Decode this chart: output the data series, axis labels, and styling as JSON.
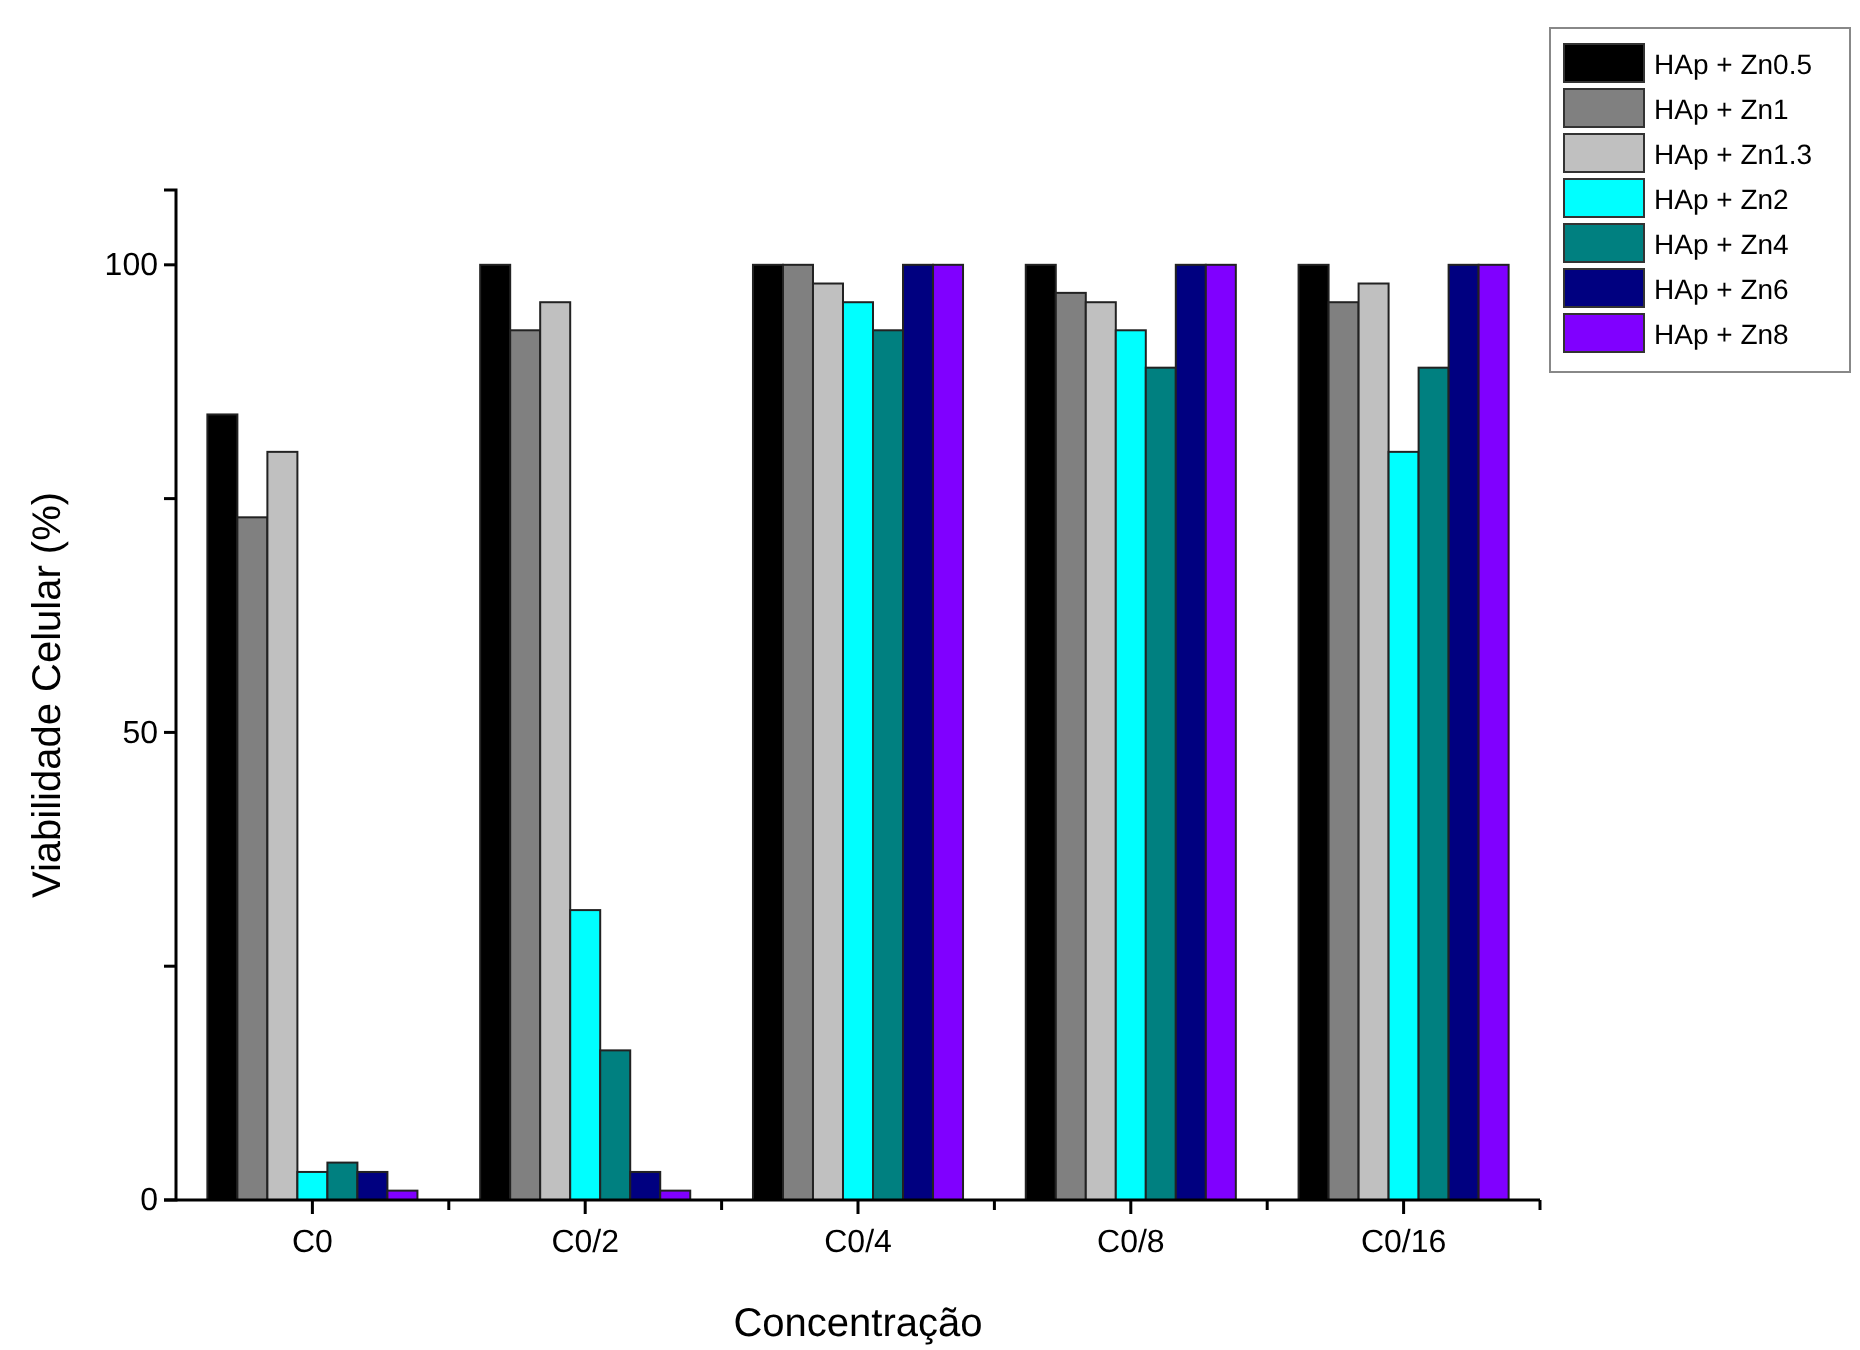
{
  "chart_data": {
    "type": "bar",
    "xlabel": "Concentração",
    "ylabel": "Viabilidade Celular (%)",
    "categories": [
      "C0",
      "C0/2",
      "C0/4",
      "C0/8",
      "C0/16"
    ],
    "series": [
      {
        "name": "HAp + Zn0.5",
        "color": "#000000",
        "values": [
          84,
          100,
          100,
          100,
          100
        ]
      },
      {
        "name": "HAp + Zn1",
        "color": "#808080",
        "values": [
          73,
          93,
          100,
          97,
          96
        ]
      },
      {
        "name": "HAp + Zn1.3",
        "color": "#c0c0c0",
        "values": [
          80,
          96,
          98,
          96,
          98
        ]
      },
      {
        "name": "HAp + Zn2",
        "color": "#00ffff",
        "values": [
          3,
          31,
          96,
          93,
          80
        ]
      },
      {
        "name": "HAp + Zn4",
        "color": "#008080",
        "values": [
          4,
          16,
          93,
          89,
          89
        ]
      },
      {
        "name": "HAp + Zn6",
        "color": "#000080",
        "values": [
          3,
          3,
          100,
          100,
          100
        ]
      },
      {
        "name": "HAp + Zn8",
        "color": "#8000ff",
        "values": [
          1,
          1,
          100,
          100,
          100
        ]
      }
    ],
    "ylim": [
      0,
      108
    ],
    "yticks": [
      0,
      {
        "value": 25,
        "label": null
      },
      50,
      {
        "value": 75,
        "label": null
      },
      100
    ],
    "legend": "top right"
  }
}
